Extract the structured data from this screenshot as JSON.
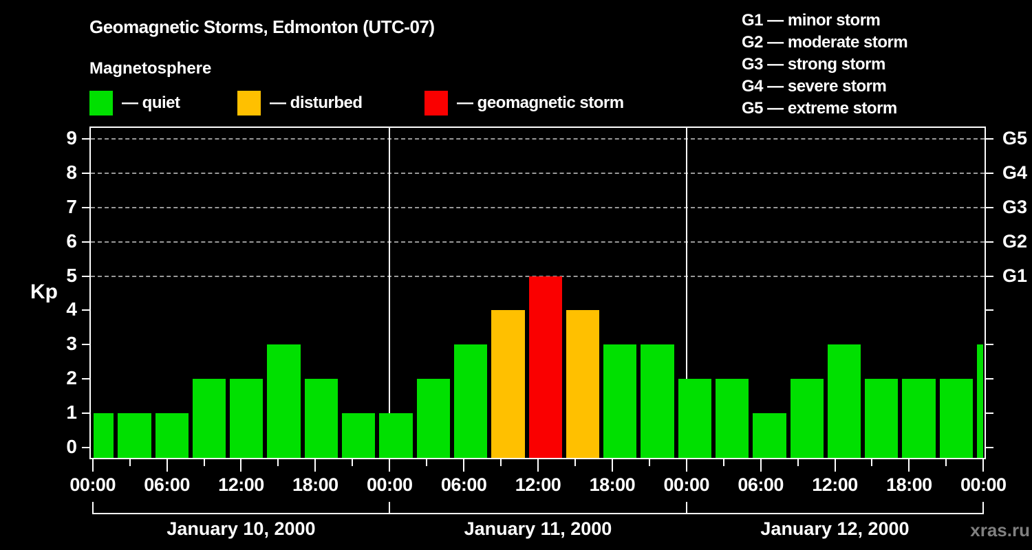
{
  "header": {
    "title": "Geomagnetic Storms, Edmonton (UTC-07)",
    "subtitle": "Magnetosphere",
    "legend": [
      {
        "key": "quiet",
        "label": "— quiet",
        "color": "#00e000"
      },
      {
        "key": "disturbed",
        "label": "— disturbed",
        "color": "#ffc000"
      },
      {
        "key": "storm",
        "label": "— geomagnetic storm",
        "color": "#fa0000"
      }
    ],
    "g_scale": [
      "G1 — minor storm",
      "G2 — moderate storm",
      "G3 — strong storm",
      "G4 — severe storm",
      "G5 — extreme storm"
    ]
  },
  "chart_data": {
    "type": "bar",
    "ylabel": "Kp",
    "ylim": [
      0,
      9.4
    ],
    "yticks": [
      0,
      1,
      2,
      3,
      4,
      5,
      6,
      7,
      8,
      9
    ],
    "gridlines_kp": [
      5,
      6,
      7,
      8,
      9
    ],
    "right_axis_labels": [
      {
        "kp": 5,
        "label": "G1"
      },
      {
        "kp": 6,
        "label": "G2"
      },
      {
        "kp": 7,
        "label": "G3"
      },
      {
        "kp": 8,
        "label": "G4"
      },
      {
        "kp": 9,
        "label": "G5"
      }
    ],
    "x_tick_labels": [
      "00:00",
      "06:00",
      "12:00",
      "18:00",
      "00:00",
      "06:00",
      "12:00",
      "18:00",
      "00:00",
      "06:00",
      "12:00",
      "18:00",
      "00:00"
    ],
    "days": [
      {
        "date": "January 10, 2000",
        "kp": [
          1,
          1,
          1,
          2,
          2,
          3,
          2,
          1
        ]
      },
      {
        "date": "January 11, 2000",
        "kp": [
          1,
          2,
          3,
          4,
          5,
          4,
          3,
          3
        ]
      },
      {
        "date": "January 12, 2000",
        "kp": [
          2,
          2,
          1,
          2,
          3,
          2,
          2,
          2
        ]
      }
    ],
    "next_day_partial_kp": 3,
    "legend_position": "top",
    "grid": "dashed, storm levels only"
  },
  "watermark": "xras.ru",
  "colors": {
    "background": "#000000",
    "text": "#ffffff",
    "axis": "#ffffff",
    "grid": "#9a9a9a",
    "watermark": "#808080",
    "quiet": "#00e000",
    "disturbed": "#ffc000",
    "storm": "#fa0000"
  }
}
